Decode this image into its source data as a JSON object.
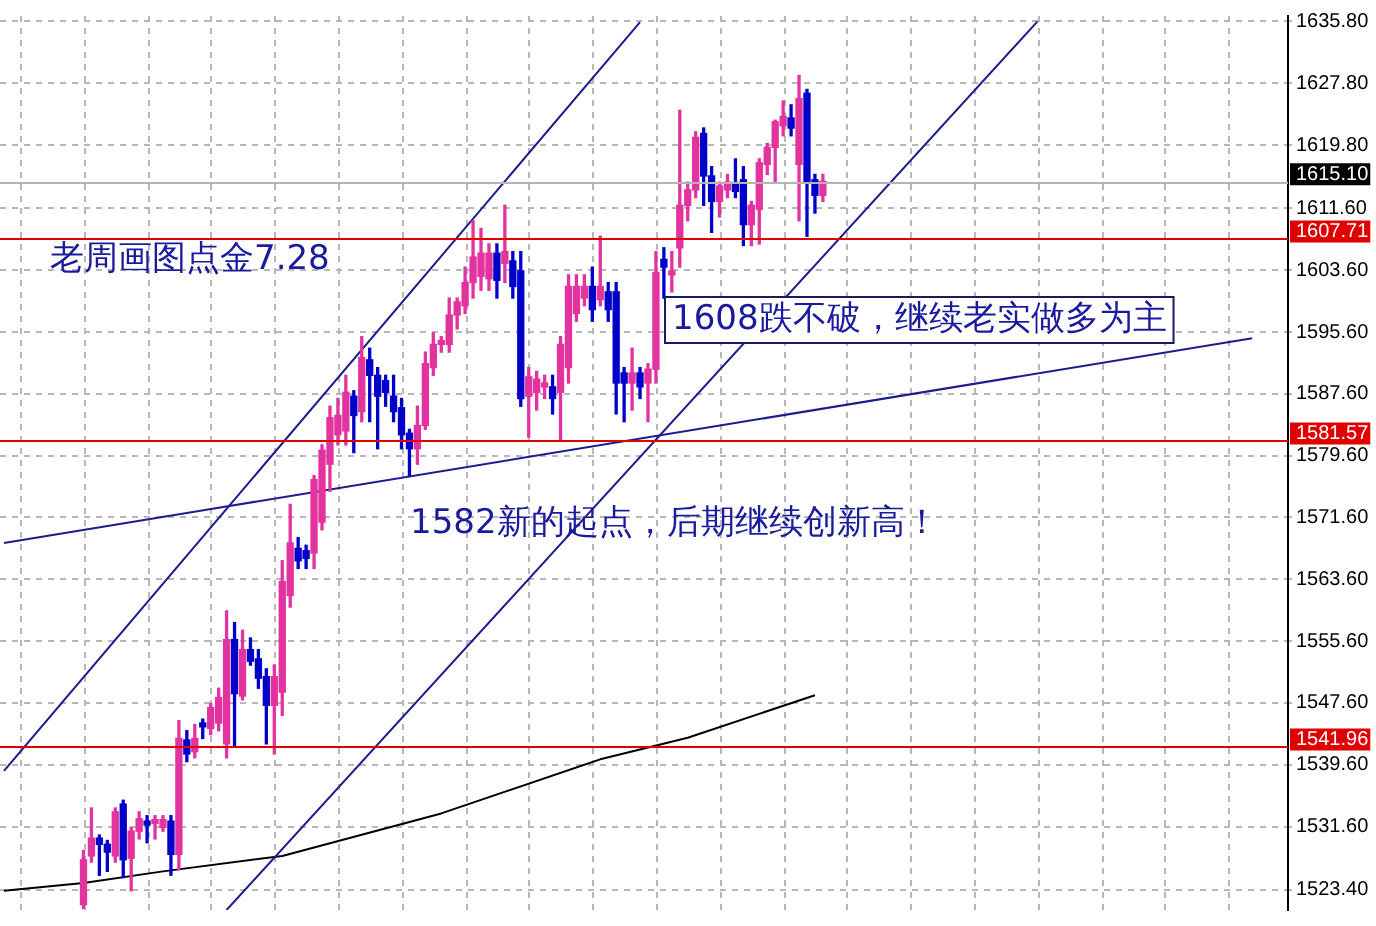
{
  "chart_data": {
    "type": "candlestick",
    "annotations": [
      "老周画图点金7.28",
      "1608跌不破，继续老实做多为主",
      "1582新的起点，后期继续创新高！"
    ],
    "categories": [
      null,
      null,
      null,
      null,
      null,
      null,
      null,
      null,
      null,
      null,
      null,
      null,
      null,
      null,
      null,
      null,
      null,
      null,
      null,
      null,
      null,
      null,
      null,
      null,
      null,
      null,
      null,
      null,
      null,
      null,
      null,
      null,
      null,
      null,
      null,
      null,
      null,
      null,
      null,
      null,
      null,
      null,
      null,
      null,
      null,
      null,
      null,
      null,
      null,
      null,
      null,
      null,
      null,
      null,
      null,
      null,
      null,
      null,
      null,
      null,
      null,
      null,
      null,
      null,
      null,
      null,
      null,
      null,
      null,
      null,
      null,
      null,
      null,
      null,
      null,
      null,
      null,
      null,
      null,
      null,
      null,
      null,
      null,
      null,
      null,
      null,
      null,
      null,
      null,
      null,
      null,
      null,
      null,
      null,
      null,
      null,
      null,
      null,
      null,
      null,
      null,
      null,
      null,
      null,
      null,
      null,
      null,
      null,
      null,
      null,
      null,
      null,
      null,
      null,
      null,
      null,
      null,
      null,
      null,
      null,
      null,
      null,
      null,
      null,
      null,
      null,
      null,
      null,
      null,
      null,
      null,
      null,
      null,
      null,
      null,
      null,
      null,
      null,
      null,
      null,
      null,
      null,
      null,
      null,
      null,
      null,
      null,
      null,
      null,
      null,
      null,
      null,
      null,
      null,
      null,
      null,
      null,
      null,
      null,
      null,
      null,
      null
    ],
    "ohlc": [
      null,
      null,
      null,
      null,
      null,
      null,
      null,
      null,
      null,
      null,
      [
        1521.5,
        1528.5,
        1521,
        1527.3
      ],
      [
        1527.8,
        1534,
        1527,
        1530.1
      ],
      [
        1530.1,
        1530.5,
        1525.3,
        1529.3
      ],
      [
        1529.3,
        1529.8,
        1525.8,
        1528.3
      ],
      [
        1527.8,
        1534,
        1527,
        1533.5
      ],
      [
        1534.5,
        1535,
        1525,
        1527.3
      ],
      [
        1527.5,
        1531.5,
        1523.3,
        1531
      ],
      [
        1531,
        1533.5,
        1530,
        1532.6
      ],
      [
        1532.3,
        1533,
        1529.5,
        1531.8
      ],
      [
        1532,
        1533,
        1530,
        1532.5
      ],
      [
        1531.5,
        1533,
        1531,
        1532.5
      ],
      [
        1532.3,
        1533,
        1525.3,
        1528
      ],
      [
        1528,
        1545.3,
        1526,
        1543
      ],
      [
        1542.8,
        1544,
        1540,
        1541
      ],
      [
        1541.3,
        1544.8,
        1540.5,
        1543
      ],
      [
        1545,
        1545.5,
        1543,
        1544.5
      ],
      [
        1544.3,
        1547.5,
        1543.5,
        1547
      ],
      [
        1545,
        1549.5,
        1544,
        1548.3
      ],
      [
        1542.3,
        1559.5,
        1540.5,
        1555.8
      ],
      [
        1555.8,
        1558,
        1542,
        1548.8
      ],
      [
        1548.5,
        1557,
        1548,
        1554.5
      ],
      [
        1554.5,
        1556,
        1552.5,
        1553
      ],
      [
        1553.3,
        1554.5,
        1549.5,
        1550.8
      ],
      [
        1551,
        1552,
        1542.3,
        1547.3
      ],
      [
        1547.3,
        1552.5,
        1541,
        1551
      ],
      [
        1549,
        1566,
        1546,
        1563.3
      ],
      [
        1561.5,
        1573.3,
        1560,
        1568.3
      ],
      [
        1567.6,
        1569,
        1565,
        1566
      ],
      [
        1567.3,
        1568,
        1565,
        1566.3
      ],
      [
        1567,
        1577,
        1565,
        1576.5
      ],
      [
        1571,
        1581,
        1570,
        1580.3
      ],
      [
        1578.5,
        1586,
        1575,
        1584.5
      ],
      [
        1582.3,
        1587,
        1581,
        1584.8
      ],
      [
        1582.8,
        1590,
        1581,
        1587.8
      ],
      [
        1587.3,
        1588,
        1580,
        1584.8
      ],
      [
        1585.3,
        1595,
        1584,
        1592.3
      ],
      [
        1592,
        1593.5,
        1584,
        1590
      ],
      [
        1590,
        1591,
        1580.5,
        1587.3
      ],
      [
        1589.3,
        1590,
        1586,
        1587.8
      ],
      [
        1587.3,
        1590,
        1584,
        1585.3
      ],
      [
        1585.8,
        1587,
        1580.5,
        1582.3
      ],
      [
        1582.5,
        1583,
        1577,
        1580.5
      ],
      [
        1580.5,
        1586,
        1578.5,
        1583.5
      ],
      [
        1583.5,
        1593,
        1583,
        1591.5
      ],
      [
        1591,
        1595.5,
        1590,
        1594
      ],
      [
        1594,
        1595,
        1593,
        1594.5
      ],
      [
        1594,
        1600,
        1593,
        1597.8
      ],
      [
        1597.8,
        1600,
        1596,
        1599.5
      ],
      [
        1599,
        1604,
        1598,
        1602
      ],
      [
        1602,
        1610,
        1600,
        1605.3
      ],
      [
        1602.8,
        1609,
        1601,
        1605.8
      ],
      [
        1602.5,
        1607,
        1601,
        1605.8
      ],
      [
        1605.8,
        1607,
        1600,
        1602.3
      ],
      [
        1604.5,
        1612,
        1602,
        1606
      ],
      [
        1604.8,
        1606,
        1600,
        1601.5
      ],
      [
        1603.5,
        1606,
        1586,
        1587
      ],
      [
        1587.3,
        1591,
        1582,
        1589.8
      ],
      [
        1587.8,
        1590.5,
        1585.5,
        1589.5
      ],
      [
        1588.5,
        1590,
        1587,
        1589
      ],
      [
        1588.5,
        1590,
        1585,
        1587
      ],
      [
        1587.8,
        1595,
        1581.5,
        1594
      ],
      [
        1591,
        1603,
        1589,
        1601.5
      ],
      [
        1598,
        1603,
        1597,
        1601.5
      ],
      [
        1600,
        1603,
        1599,
        1601.5
      ],
      [
        1601.5,
        1604,
        1597,
        1598.5
      ],
      [
        1599.8,
        1608,
        1599,
        1601.5
      ],
      [
        1600.8,
        1602,
        1597,
        1598.5
      ],
      [
        1600.8,
        1602,
        1585,
        1589
      ],
      [
        1590.3,
        1591,
        1584,
        1589
      ],
      [
        1589,
        1593.5,
        1585.5,
        1590.3
      ],
      [
        1590.3,
        1591,
        1587,
        1588.5
      ],
      [
        1589,
        1591.5,
        1584,
        1590.8
      ],
      [
        1590.8,
        1606,
        1589,
        1603.3
      ],
      [
        1605,
        1606.5,
        1600,
        1604
      ],
      [
        1603,
        1606,
        1600.8,
        1603.5
      ],
      [
        1606.5,
        1624.3,
        1604,
        1612
      ],
      [
        1612,
        1615,
        1610,
        1614
      ],
      [
        1614,
        1621.5,
        1613,
        1620.8
      ],
      [
        1621.3,
        1622,
        1612,
        1615.8
      ],
      [
        1615.8,
        1617,
        1608.5,
        1612.5
      ],
      [
        1612.5,
        1615,
        1610.5,
        1614.5
      ],
      [
        1614,
        1616,
        1613,
        1615
      ],
      [
        1614.8,
        1618,
        1613,
        1613.8
      ],
      [
        1615.3,
        1617,
        1606.8,
        1609.5
      ],
      [
        1609.5,
        1612.5,
        1606.8,
        1612
      ],
      [
        1611.5,
        1618,
        1607,
        1617.5
      ],
      [
        1617.3,
        1620,
        1616,
        1619.5
      ],
      [
        1619.5,
        1623,
        1615,
        1622.8
      ],
      [
        1622.3,
        1625.5,
        1621,
        1623.5
      ],
      [
        1623.3,
        1625,
        1621,
        1622
      ],
      [
        1617.3,
        1628.8,
        1610,
        1625.8
      ],
      [
        1626.5,
        1627,
        1608,
        1615
      ],
      [
        1615.3,
        1616,
        1611,
        1613.3
      ],
      [
        1613.3,
        1616,
        1612.5,
        1615.1
      ],
      null,
      null,
      null,
      null,
      null,
      null,
      null,
      null,
      null,
      null,
      null,
      null,
      null,
      null,
      null,
      null,
      null,
      null,
      null,
      null,
      null,
      null,
      null,
      null,
      null,
      null,
      null,
      null,
      null,
      null,
      null,
      null,
      null,
      null,
      null,
      null,
      null,
      null,
      null,
      null,
      null,
      null,
      null,
      null,
      null,
      null,
      null,
      null,
      null,
      null,
      null,
      null,
      null,
      null,
      null,
      null,
      null,
      null
    ],
    "colors": [
      null,
      null,
      null,
      null,
      null,
      null,
      null,
      null,
      null,
      null,
      "#e2339f",
      "#e2339f",
      "#0000c8",
      "#0000c8",
      "#e2339f",
      "#0000c8",
      "#e2339f",
      "#e2339f",
      "#0000c8",
      "#e2339f",
      "#e2339f",
      "#0000c8",
      "#e2339f",
      "#0000c8",
      "#e2339f",
      "#0000c8",
      "#e2339f",
      "#e2339f",
      "#e2339f",
      "#0000c8",
      "#e2339f",
      "#0000c8",
      "#0000c8",
      "#0000c8",
      "#e2339f",
      "#e2339f",
      "#e2339f",
      "#0000c8",
      "#0000c8",
      "#e2339f",
      "#e2339f",
      "#e2339f",
      "#e2339f",
      "#e2339f",
      "#0000c8",
      "#e2339f",
      "#0000c8",
      "#0000c8",
      "#0000c8",
      "#0000c8",
      "#0000c8",
      "#0000c8",
      "#e2339f",
      "#e2339f",
      "#e2339f",
      "#e2339f",
      "#e2339f",
      "#e2339f",
      "#e2339f",
      "#e2339f",
      "#e2339f",
      "#e2339f",
      "#0000c8",
      "#e2339f",
      "#0000c8",
      "#0000c8",
      "#e2339f",
      "#e2339f",
      "#e2339f",
      "#0000c8",
      "#e2339f",
      "#e2339f",
      "#e2339f",
      "#e2339f",
      "#0000c8",
      "#e2339f",
      "#0000c8",
      "#0000c8",
      "#0000c8",
      "#e2339f",
      "#0000c8",
      "#e2339f",
      "#e2339f",
      "#0000c8",
      "#e2339f",
      "#e2339f",
      "#e2339f",
      "#e2339f",
      "#0000c8",
      "#0000c8",
      "#e2339f",
      "#e2339f",
      "#0000c8",
      "#0000c8",
      "#e2339f",
      "#e2339f",
      "#e2339f",
      "#e2339f",
      "#e2339f",
      "#0000c8",
      "#e2339f",
      "#0000c8",
      "#0000c8",
      "#e2339f",
      null,
      null,
      null,
      null,
      null,
      null,
      null,
      null,
      null,
      null,
      null,
      null,
      null,
      null,
      null,
      null,
      null,
      null,
      null,
      null,
      null,
      null,
      null,
      null,
      null,
      null,
      null,
      null,
      null,
      null,
      null,
      null,
      null,
      null,
      null,
      null,
      null,
      null,
      null,
      null,
      null,
      null,
      null,
      null,
      null,
      null,
      null,
      null,
      null,
      null,
      null,
      null,
      null,
      null,
      null,
      null,
      null,
      null
    ],
    "series": [
      {
        "type": "line",
        "color": "#1c1c8c",
        "values": [
          1538.8,
          null,
          null,
          null,
          null,
          null,
          null,
          null,
          null,
          null,
          null,
          null,
          null,
          null,
          null,
          null,
          null,
          null,
          null,
          null,
          null,
          null,
          null,
          null,
          null,
          null,
          null,
          null,
          null,
          null,
          null,
          null,
          null,
          null,
          null,
          null,
          null,
          null,
          null,
          null,
          null,
          null,
          null,
          null,
          null,
          null,
          null,
          null,
          null,
          null,
          null,
          null,
          null,
          null,
          null,
          null,
          null,
          null,
          null,
          null,
          null,
          null,
          null,
          null,
          null,
          null,
          null,
          null,
          null,
          null,
          null,
          null,
          null,
          null,
          null,
          null,
          null,
          null,
          null,
          null,
          1635.7,
          null,
          null,
          null,
          null,
          null,
          null,
          null,
          null,
          null,
          null,
          null,
          null,
          null,
          null,
          null,
          null,
          null,
          null,
          null,
          null,
          null,
          null,
          null,
          null,
          null,
          null,
          null,
          null,
          null,
          null,
          null,
          null,
          null,
          null,
          null,
          null,
          null,
          null,
          null,
          null,
          null,
          null,
          null,
          null,
          null,
          null,
          null,
          null,
          null,
          null,
          null,
          null,
          null,
          null,
          null,
          null,
          null,
          null,
          null,
          null,
          null,
          null,
          null,
          null,
          null,
          null,
          null,
          null,
          null,
          null,
          null,
          null,
          null,
          null,
          null,
          null,
          null,
          null,
          null,
          null,
          null
        ]
      },
      {
        "type": "line",
        "color": "#1c1c8c",
        "values": [
          null,
          null,
          null,
          null,
          null,
          null,
          null,
          null,
          null,
          null,
          null,
          null,
          null,
          null,
          null,
          null,
          null,
          null,
          null,
          null,
          null,
          null,
          null,
          null,
          null,
          null,
          null,
          null,
          1520.8,
          null,
          null,
          null,
          null,
          null,
          null,
          null,
          null,
          null,
          null,
          null,
          null,
          null,
          null,
          null,
          null,
          null,
          null,
          null,
          null,
          null,
          null,
          null,
          null,
          null,
          null,
          null,
          null,
          null,
          null,
          null,
          null,
          null,
          null,
          null,
          null,
          null,
          null,
          null,
          null,
          null,
          null,
          null,
          null,
          null,
          null,
          null,
          null,
          null,
          null,
          null,
          null,
          null,
          null,
          null,
          null,
          null,
          null,
          null,
          null,
          null,
          null,
          null,
          null,
          null,
          null,
          null,
          null,
          null,
          null,
          null,
          null,
          null,
          null,
          null,
          null,
          null,
          null,
          null,
          null,
          null,
          null,
          null,
          null,
          null,
          null,
          null,
          null,
          null,
          null,
          null,
          null,
          null,
          null,
          null,
          null,
          null,
          null,
          null,
          null,
          null,
          1635.8,
          null,
          null,
          null,
          null,
          null,
          null,
          null,
          null,
          null,
          null,
          null,
          null,
          null,
          null,
          null,
          null,
          null,
          null,
          null,
          null,
          null,
          null,
          null,
          null,
          null,
          null,
          null,
          null,
          null,
          null,
          null
        ]
      },
      {
        "type": "line",
        "color": "#1c1c8c",
        "values": [
          1568.3,
          null,
          null,
          null,
          null,
          null,
          null,
          null,
          null,
          null,
          null,
          null,
          null,
          null,
          null,
          null,
          null,
          null,
          null,
          null,
          null,
          null,
          null,
          null,
          null,
          null,
          null,
          null,
          null,
          null,
          null,
          null,
          null,
          null,
          null,
          null,
          null,
          null,
          null,
          null,
          null,
          null,
          null,
          null,
          null,
          null,
          null,
          null,
          null,
          null,
          null,
          null,
          null,
          null,
          null,
          null,
          null,
          null,
          null,
          null,
          null,
          null,
          null,
          null,
          null,
          null,
          null,
          null,
          null,
          null,
          null,
          null,
          null,
          null,
          null,
          null,
          null,
          null,
          null,
          null,
          null,
          null,
          null,
          null,
          null,
          null,
          null,
          null,
          null,
          null,
          null,
          null,
          null,
          null,
          null,
          null,
          null,
          null,
          null,
          null,
          null,
          null,
          null,
          null,
          null,
          null,
          null,
          null,
          null,
          null,
          null,
          null,
          null,
          null,
          null,
          null,
          null,
          null,
          null,
          null,
          null,
          null,
          null,
          null,
          null,
          null,
          null,
          null,
          null,
          null,
          null,
          null,
          null,
          null,
          null,
          null,
          null,
          null,
          null,
          null,
          null,
          null,
          null,
          null,
          null,
          null,
          null,
          null,
          null,
          null,
          null,
          null,
          null,
          null,
          null,
          null,
          null,
          1594.8,
          null,
          null,
          null,
          null
        ]
      },
      {
        "type": "line",
        "color": "#000000",
        "values": [
          1523.3,
          null,
          null,
          null,
          null,
          null,
          null,
          null,
          null,
          null,
          1524.3,
          null,
          null,
          null,
          null,
          null,
          null,
          null,
          null,
          null,
          1525.8,
          null,
          null,
          null,
          null,
          null,
          null,
          null,
          null,
          null,
          null,
          null,
          null,
          null,
          null,
          1527.8,
          null,
          null,
          null,
          null,
          null,
          null,
          null,
          null,
          null,
          null,
          null,
          null,
          null,
          null,
          null,
          null,
          null,
          null,
          null,
          1533.3,
          null,
          null,
          null,
          null,
          null,
          null,
          null,
          null,
          null,
          null,
          null,
          null,
          null,
          null,
          null,
          null,
          null,
          null,
          null,
          1540.3,
          null,
          null,
          null,
          null,
          null,
          null,
          null,
          null,
          null,
          null,
          1543.1,
          null,
          null,
          null,
          null,
          null,
          null,
          null,
          null,
          null,
          null,
          null,
          null,
          null,
          null,
          null,
          1548.6,
          null,
          null,
          null,
          null,
          null,
          null,
          null,
          null,
          null,
          null,
          null,
          null,
          null,
          null,
          null,
          null,
          null,
          null,
          null,
          null,
          null,
          null,
          null,
          null,
          null,
          null,
          null,
          null,
          null,
          null,
          null,
          null,
          null,
          null,
          null,
          null,
          null,
          null,
          null,
          null,
          null,
          null,
          null,
          null,
          null,
          null,
          null,
          null,
          null,
          null,
          null,
          null,
          null,
          null,
          null,
          null,
          null,
          null,
          null
        ]
      }
    ],
    "ylim": [
      1520.8,
      1636.5
    ],
    "yticks": [
      {
        "value": 1523.4,
        "label": "1523.40"
      },
      {
        "value": 1531.6,
        "label": "1531.60"
      },
      {
        "value": 1539.6,
        "label": "1539.60"
      },
      {
        "value": 1547.6,
        "label": "1547.60"
      },
      {
        "value": 1555.6,
        "label": "1555.60"
      },
      {
        "value": 1563.6,
        "label": "1563.60"
      },
      {
        "value": 1571.6,
        "label": "1571.60"
      },
      {
        "value": 1579.6,
        "label": "1579.60"
      },
      {
        "value": 1587.6,
        "label": "1587.60"
      },
      {
        "value": 1595.6,
        "label": "1595.60"
      },
      {
        "value": 1603.6,
        "label": "1603.60"
      },
      {
        "value": 1611.6,
        "label": "1611.60"
      },
      {
        "value": 1619.8,
        "label": "1619.80"
      },
      {
        "value": 1627.8,
        "label": "1627.80"
      },
      {
        "value": 1635.8,
        "label": "1635.80"
      }
    ],
    "ref_lines": [
      {
        "axis": "y",
        "value": 1607.71,
        "label": "1607.71",
        "color": "#e00000"
      },
      {
        "axis": "y",
        "value": 1581.57,
        "label": "1581.57",
        "color": "#e00000"
      },
      {
        "axis": "y",
        "value": 1541.96,
        "label": "1541.96",
        "color": "#e00000"
      },
      {
        "axis": "y",
        "value": 1615.1,
        "label": "1615.10",
        "color": "#b4b4b4"
      }
    ],
    "grid": true,
    "legend": false,
    "marker": "none",
    "line_style": "solid",
    "tick_labels": "y"
  }
}
